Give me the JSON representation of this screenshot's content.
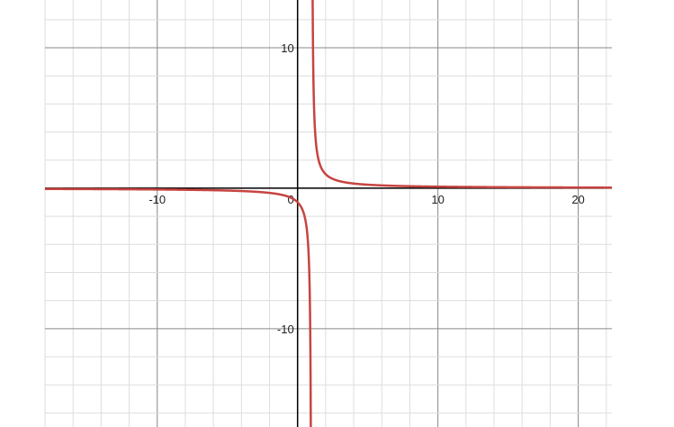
{
  "chart_data": {
    "type": "line",
    "title": "",
    "xlabel": "",
    "ylabel": "",
    "xlim": [
      -18,
      22.4
    ],
    "ylim": [
      -17,
      13.4
    ],
    "grid": true,
    "minor_grid_step": 2,
    "major_grid_step": 10,
    "x_tick_labels": [
      "-10",
      "0",
      "10",
      "20"
    ],
    "x_tick_values": [
      -10,
      0,
      10,
      20
    ],
    "y_tick_labels": [
      "10",
      "-10"
    ],
    "y_tick_values": [
      10,
      -10
    ],
    "series": [
      {
        "function": "y = 1/(x-1)",
        "vertical_asymptote": 1,
        "color": "#c74440"
      }
    ],
    "colors": {
      "curve": "#c74440",
      "axis": "#000000",
      "major_grid": "#888888",
      "minor_grid": "#dddddd"
    }
  }
}
